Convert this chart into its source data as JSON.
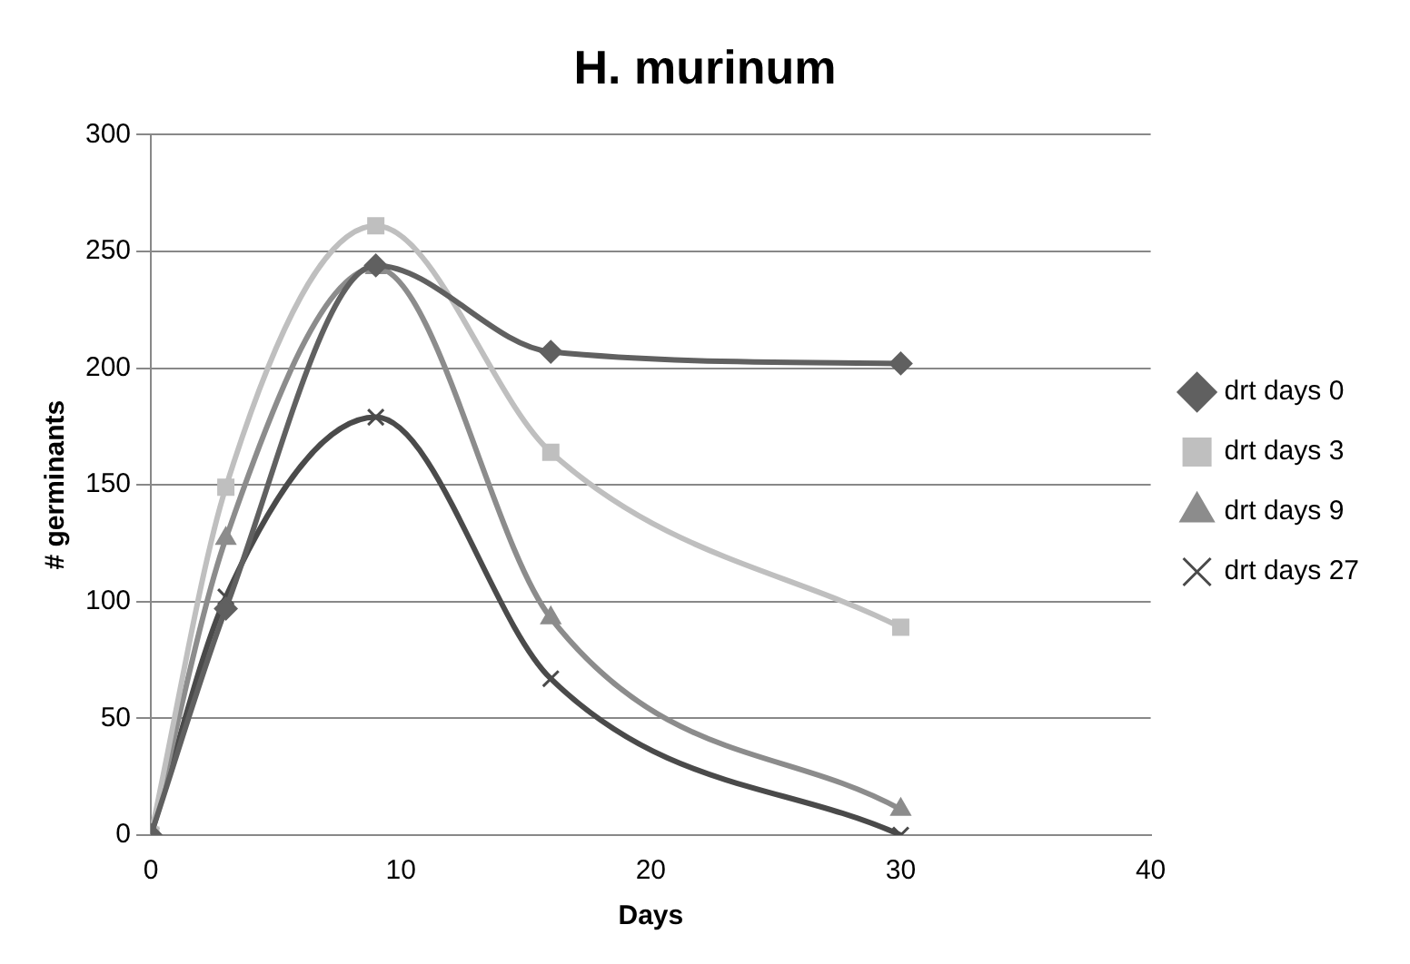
{
  "chart_data": {
    "type": "line",
    "title": "H. murinum",
    "xlabel": "Days",
    "ylabel": "# germinants",
    "x": [
      0,
      3,
      9,
      16,
      30
    ],
    "series": [
      {
        "name": "drt days 0",
        "color": "#606060",
        "marker": "diamond",
        "values": [
          0,
          97,
          244,
          207,
          202
        ]
      },
      {
        "name": "drt days 3",
        "color": "#bfbfbf",
        "marker": "square",
        "values": [
          0,
          149,
          261,
          164,
          89
        ]
      },
      {
        "name": "drt days 9",
        "color": "#8c8c8c",
        "marker": "triangle",
        "values": [
          0,
          127,
          243,
          93,
          11
        ]
      },
      {
        "name": "drt days 27",
        "color": "#4a4a4a",
        "marker": "cross",
        "values": [
          0,
          102,
          179,
          67,
          0
        ]
      }
    ],
    "xlim": [
      0,
      40
    ],
    "xticks": [
      0,
      10,
      20,
      30,
      40
    ],
    "ylim": [
      0,
      300
    ],
    "yticks": [
      0,
      50,
      100,
      150,
      200,
      250,
      300
    ],
    "grid": "y",
    "legend": "right",
    "line_style": "solid"
  }
}
